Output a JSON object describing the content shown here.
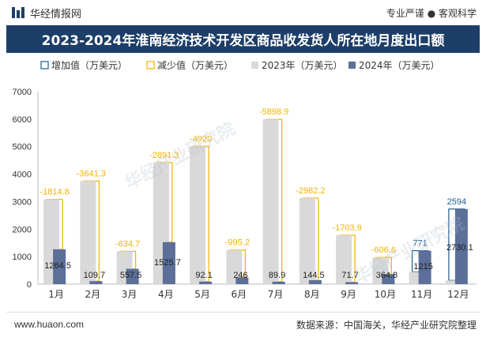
{
  "header": {
    "brand": "华经情报网",
    "slogan": "专业严谨 ● 客观科学"
  },
  "watermark": "华经产业研究院",
  "footer": {
    "url": "www.huaon.com",
    "source": "数据来源：中国海关，华经产业研究院整理"
  },
  "colors": {
    "title_bg": "#1d3e68",
    "bar_2023": "#d9d9d9",
    "bar_2024": "#5b6f99",
    "increase_border": "#1f5d8f",
    "decrease_border": "#f3b300",
    "increase_label": "#1f5d8f",
    "decrease_label": "#f3b300"
  },
  "chart_data": {
    "type": "bar",
    "title": "2023-2024年淮南经济技术开发区商品收发货人所在地月度出口额",
    "categories": [
      "1月",
      "2月",
      "3月",
      "4月",
      "5月",
      "6月",
      "7月",
      "8月",
      "9月",
      "10月",
      "11月",
      "12月"
    ],
    "legend": [
      "增加值（万美元）",
      "减少值（万美元）",
      "2023年（万美元）",
      "2024年（万美元）"
    ],
    "legend_position": "top-left",
    "ylim": [
      0,
      7000
    ],
    "yticks": [
      0,
      1000,
      2000,
      3000,
      4000,
      5000,
      6000,
      7000
    ],
    "grid": false,
    "series": [
      {
        "name": "2023年（万美元）",
        "values": [
          3079.3,
          3751.0,
          1192.2,
          4417.0,
          5012.1,
          1241.2,
          5988.8,
          3126.7,
          1775.6,
          971.4,
          444.0,
          136.1
        ]
      },
      {
        "name": "2024年（万美元）",
        "values": [
          1264.5,
          109.7,
          557.5,
          1525.7,
          92.1,
          246,
          89.9,
          144.5,
          71.7,
          364.8,
          1215,
          2730.1
        ]
      }
    ],
    "changes": [
      -1814.8,
      -3641.3,
      -634.7,
      -2891.3,
      -4920,
      -995.2,
      -5898.9,
      -2982.2,
      -1703.9,
      -606.6,
      771,
      2594
    ],
    "change_labels": [
      "-1814.8",
      "-3641.3",
      "-634.7",
      "-2891.3",
      "-4920",
      "-995.2",
      "-5898.9",
      "-2982.2",
      "-1703.9",
      "-606.6",
      "771",
      "2594"
    ],
    "value_labels_2024": [
      "1264.5",
      "109.7",
      "557.5",
      "1525.7",
      "92.1",
      "246",
      "89.9",
      "144.5",
      "71.7",
      "364.8",
      "1215",
      "2730.1"
    ]
  }
}
